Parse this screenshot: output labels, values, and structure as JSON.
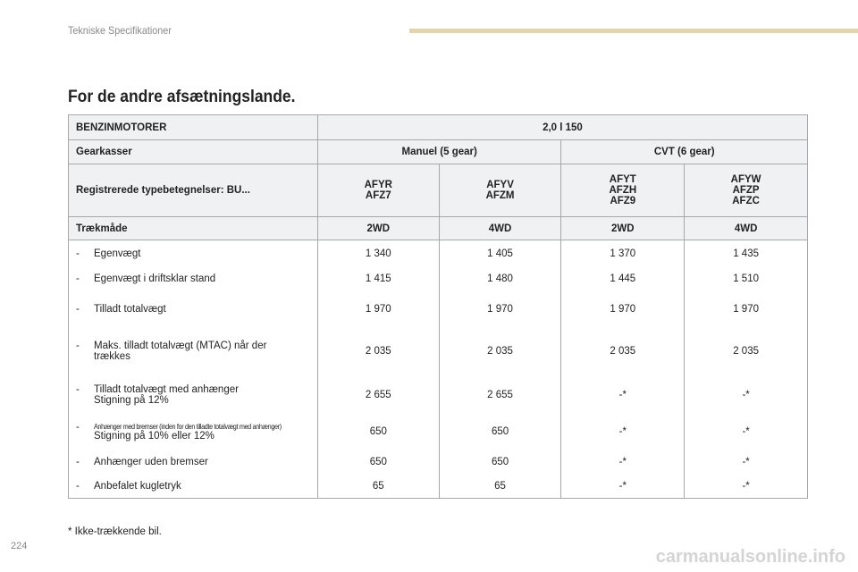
{
  "header": {
    "section": "Tekniske Specifikationer",
    "title": "For de andre afsætningslande.",
    "accent_color": "#e2d5a9"
  },
  "table": {
    "engine_label": "BENZINMOTORER",
    "engine_value": "2,0 l 150",
    "gearbox_label": "Gearkasser",
    "gearbox_manual": "Manuel (5 gear)",
    "gearbox_cvt": "CVT (6 gear)",
    "types_label": "Registrerede typebetegnelser: BU...",
    "types": [
      [
        "AFYR",
        "AFZ7"
      ],
      [
        "AFYV",
        "AFZM"
      ],
      [
        "AFYT",
        "AFZH",
        "AFZ9"
      ],
      [
        "AFYW",
        "AFZP",
        "AFZC"
      ]
    ],
    "drive_label": "Trækmåde",
    "drive": [
      "2WD",
      "4WD",
      "2WD",
      "4WD"
    ],
    "rows": [
      {
        "dash": "-",
        "label": "Egenvægt",
        "values": [
          "1 340",
          "1 405",
          "1 370",
          "1 435"
        ]
      },
      {
        "dash": "-",
        "label": "Egenvægt i driftsklar stand",
        "values": [
          "1 415",
          "1 480",
          "1 445",
          "1 510"
        ]
      },
      {
        "dash": "-",
        "label": "Tilladt totalvægt",
        "values": [
          "1 970",
          "1 970",
          "1 970",
          "1 970"
        ]
      },
      {
        "dash": "-",
        "label": "Maks. tilladt totalvægt (MTAC) når der trækkes",
        "values": [
          "2 035",
          "2 035",
          "2 035",
          "2 035"
        ]
      },
      {
        "dash": "-",
        "label": "Tilladt totalvægt med anhænger",
        "sub": "Stigning på 12%",
        "values": [
          "2 655",
          "2 655",
          "-*",
          "-*"
        ]
      },
      {
        "dash": "-",
        "label": "Anhænger med bremser (inden for den tilladte totalvægt med anhænger)",
        "sub": "Stigning på 10% eller 12%",
        "values": [
          "650",
          "650",
          "-*",
          "-*"
        ]
      },
      {
        "dash": "-",
        "label": "Anhænger uden bremser",
        "values": [
          "650",
          "650",
          "-*",
          "-*"
        ]
      },
      {
        "dash": "-",
        "label": "Anbefalet kugletryk",
        "values": [
          "65",
          "65",
          "-*",
          "-*"
        ]
      }
    ]
  },
  "footnote": "* Ikke-trækkende bil.",
  "page_number": "224",
  "watermark": "carmanualsonline.info"
}
